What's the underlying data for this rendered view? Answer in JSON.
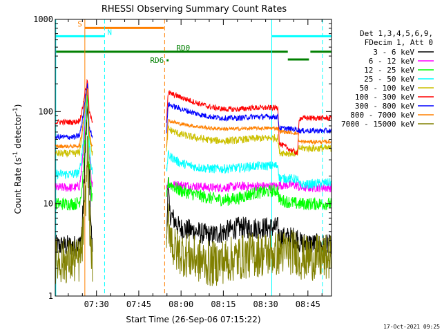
{
  "chart_data": {
    "type": "line",
    "title": "RHESSI Observing Summary Count Rates",
    "xlabel": "Start Time (26-Sep-06 07:15:22)",
    "ylabel_main": "Count Rate (s",
    "ylabel_sup1": "-1",
    "ylabel_mid": " detector",
    "ylabel_sup2": "-1",
    "ylabel_end": ")",
    "x_unit": "minutes after 07:15:22",
    "xlim": [
      0,
      98
    ],
    "ylim": [
      1,
      1000
    ],
    "yscale": "log",
    "x_ticks": [
      {
        "x": 14.63,
        "label": "07:30"
      },
      {
        "x": 29.63,
        "label": "07:45"
      },
      {
        "x": 44.63,
        "label": "08:00"
      },
      {
        "x": 59.63,
        "label": "08:15"
      },
      {
        "x": 74.63,
        "label": "08:30"
      },
      {
        "x": 89.63,
        "label": "08:45"
      }
    ],
    "y_ticks": [
      {
        "v": 1,
        "label": "1"
      },
      {
        "v": 10,
        "label": "10"
      },
      {
        "v": 100,
        "label": "100"
      },
      {
        "v": 1000,
        "label": "1000"
      }
    ],
    "legend": {
      "header": [
        "Det 1,3,4,5,6,9,",
        "FDecim 1, Att 0"
      ],
      "placement": "right"
    },
    "series": [
      {
        "name": "3 - 6 keV",
        "color": "#000000",
        "noise": 0.12,
        "points": [
          [
            0,
            3.5
          ],
          [
            7,
            3.5
          ],
          [
            8.6,
            3.6
          ],
          [
            9.5,
            5
          ],
          [
            10.5,
            30
          ],
          [
            11.5,
            120
          ],
          [
            12,
            25
          ],
          [
            13,
            3.5
          ],
          [
            39.5,
            3.5
          ],
          [
            40,
            20
          ],
          [
            40.5,
            8
          ],
          [
            44,
            5.5
          ],
          [
            50,
            5
          ],
          [
            55,
            4.5
          ],
          [
            60,
            5
          ],
          [
            65,
            5.5
          ],
          [
            70,
            5.5
          ],
          [
            79,
            5.5
          ],
          [
            79.5,
            4.3
          ],
          [
            86,
            4.3
          ],
          [
            86.5,
            3.8
          ],
          [
            98,
            3.5
          ]
        ]
      },
      {
        "name": "6 - 12 keV",
        "color": "#ff00ff",
        "noise": 0.05,
        "points": [
          [
            0,
            15
          ],
          [
            7,
            15
          ],
          [
            8.6,
            15.5
          ],
          [
            9.5,
            25
          ],
          [
            10.5,
            70
          ],
          [
            11.5,
            180
          ],
          [
            12,
            40
          ],
          [
            13,
            16
          ],
          [
            39.5,
            16
          ],
          [
            40,
            16
          ],
          [
            44,
            16
          ],
          [
            50,
            15.5
          ],
          [
            55,
            15
          ],
          [
            60,
            15
          ],
          [
            65,
            15.5
          ],
          [
            70,
            15.5
          ],
          [
            79,
            15.5
          ],
          [
            79.5,
            16
          ],
          [
            86,
            16
          ],
          [
            86.5,
            15
          ],
          [
            98,
            15
          ]
        ]
      },
      {
        "name": "12 - 25 keV",
        "color": "#00ff00",
        "noise": 0.07,
        "points": [
          [
            0,
            10
          ],
          [
            7,
            10
          ],
          [
            8.6,
            10.5
          ],
          [
            9.5,
            15
          ],
          [
            10.5,
            45
          ],
          [
            11.5,
            150
          ],
          [
            12,
            30
          ],
          [
            13,
            11
          ],
          [
            39.5,
            11
          ],
          [
            40,
            17
          ],
          [
            44,
            14
          ],
          [
            50,
            12.5
          ],
          [
            55,
            11.5
          ],
          [
            60,
            11
          ],
          [
            65,
            11.5
          ],
          [
            70,
            13
          ],
          [
            79,
            14
          ],
          [
            79.5,
            11
          ],
          [
            86,
            10
          ],
          [
            86.5,
            10
          ],
          [
            98,
            10
          ]
        ]
      },
      {
        "name": "25 - 50 keV",
        "color": "#00ffff",
        "noise": 0.05,
        "points": [
          [
            0,
            21
          ],
          [
            7,
            21
          ],
          [
            8.6,
            22
          ],
          [
            9.5,
            35
          ],
          [
            10.5,
            90
          ],
          [
            11.5,
            200
          ],
          [
            12,
            50
          ],
          [
            13,
            22
          ],
          [
            39.5,
            22
          ],
          [
            40,
            34
          ],
          [
            44,
            28
          ],
          [
            50,
            25
          ],
          [
            55,
            24
          ],
          [
            60,
            24
          ],
          [
            65,
            24.5
          ],
          [
            70,
            25.5
          ],
          [
            79,
            26
          ],
          [
            79.5,
            19
          ],
          [
            86,
            18.5
          ],
          [
            86.5,
            16
          ],
          [
            98,
            17
          ]
        ]
      },
      {
        "name": "50 - 100 keV",
        "color": "#ccc000",
        "noise": 0.04,
        "points": [
          [
            0,
            35
          ],
          [
            7,
            35
          ],
          [
            8.6,
            36
          ],
          [
            9.5,
            55
          ],
          [
            10.5,
            120
          ],
          [
            11.5,
            210
          ],
          [
            12,
            60
          ],
          [
            13,
            36
          ],
          [
            39.5,
            36
          ],
          [
            40,
            65
          ],
          [
            44,
            57
          ],
          [
            50,
            52
          ],
          [
            55,
            49
          ],
          [
            60,
            48
          ],
          [
            65,
            49
          ],
          [
            70,
            51
          ],
          [
            79,
            52
          ],
          [
            79.5,
            36
          ],
          [
            86,
            35
          ],
          [
            86.5,
            40
          ],
          [
            98,
            40
          ]
        ]
      },
      {
        "name": "100 - 300 keV",
        "color": "#ff0000",
        "noise": 0.03,
        "points": [
          [
            0,
            77
          ],
          [
            7,
            77
          ],
          [
            8.6,
            80
          ],
          [
            9.5,
            100
          ],
          [
            10.5,
            160
          ],
          [
            11.5,
            220
          ],
          [
            12,
            100
          ],
          [
            13,
            80
          ],
          [
            39.5,
            80
          ],
          [
            40,
            160
          ],
          [
            44,
            145
          ],
          [
            50,
            125
          ],
          [
            55,
            112
          ],
          [
            60,
            106
          ],
          [
            65,
            106
          ],
          [
            70,
            110
          ],
          [
            79,
            110
          ],
          [
            79.5,
            45
          ],
          [
            86,
            35
          ],
          [
            86.5,
            85
          ],
          [
            98,
            85
          ]
        ]
      },
      {
        "name": "300 - 800 keV",
        "color": "#0000ff",
        "noise": 0.03,
        "points": [
          [
            0,
            53
          ],
          [
            7,
            53
          ],
          [
            8.6,
            55
          ],
          [
            9.5,
            75
          ],
          [
            10.5,
            130
          ],
          [
            11.5,
            200
          ],
          [
            12,
            70
          ],
          [
            13,
            55
          ],
          [
            39.5,
            55
          ],
          [
            40,
            120
          ],
          [
            44,
            108
          ],
          [
            50,
            95
          ],
          [
            55,
            88
          ],
          [
            60,
            85
          ],
          [
            65,
            85
          ],
          [
            70,
            88
          ],
          [
            79,
            88
          ],
          [
            79.5,
            66
          ],
          [
            86,
            64
          ],
          [
            86.5,
            62
          ],
          [
            98,
            62
          ]
        ]
      },
      {
        "name": "800 - 7000 keV",
        "color": "#ff8000",
        "noise": 0.02,
        "points": [
          [
            0,
            42
          ],
          [
            7,
            42
          ],
          [
            8.6,
            43
          ],
          [
            9.5,
            60
          ],
          [
            10.5,
            110
          ],
          [
            11.5,
            180
          ],
          [
            12,
            60
          ],
          [
            13,
            43
          ],
          [
            39.5,
            43
          ],
          [
            40,
            80
          ],
          [
            44,
            74
          ],
          [
            50,
            69
          ],
          [
            55,
            66
          ],
          [
            60,
            65
          ],
          [
            65,
            65
          ],
          [
            70,
            66
          ],
          [
            79,
            66
          ],
          [
            79.5,
            61
          ],
          [
            86,
            58
          ],
          [
            86.5,
            47
          ],
          [
            98,
            47
          ]
        ]
      },
      {
        "name": "7000 - 15000 keV",
        "color": "#808000",
        "noise": 0.25,
        "points": [
          [
            0,
            2.4
          ],
          [
            7,
            2.4
          ],
          [
            8.6,
            2.4
          ],
          [
            9.5,
            3.5
          ],
          [
            10.5,
            8
          ],
          [
            11.5,
            40
          ],
          [
            12,
            8
          ],
          [
            13,
            2.4
          ],
          [
            39.5,
            2.4
          ],
          [
            40,
            7
          ],
          [
            42,
            3.2
          ],
          [
            50,
            2.5
          ],
          [
            55,
            2.2
          ],
          [
            60,
            2.4
          ],
          [
            65,
            2.6
          ],
          [
            70,
            2.8
          ],
          [
            79,
            2.9
          ],
          [
            79.5,
            3.0
          ],
          [
            86,
            3.0
          ],
          [
            86.5,
            2.6
          ],
          [
            98,
            2.6
          ]
        ]
      }
    ],
    "flag_bars": [
      {
        "label": "S",
        "color": "#ff8000",
        "x0": 10.5,
        "x1": 38.5,
        "level": 0.031
      },
      {
        "label": "N",
        "color": "#00ffff",
        "x0": 0,
        "x1": 17.5,
        "level": 0.061
      },
      {
        "label": "",
        "color": "#00ffff",
        "x0": 76.8,
        "x1": 98,
        "level": 0.061
      },
      {
        "label": "RD0",
        "color": "#008000",
        "x0": 0,
        "x1": 82.5,
        "level": 0.117
      },
      {
        "label": "",
        "color": "#008000",
        "x0": 90.5,
        "x1": 98,
        "level": 0.117
      },
      {
        "label": "",
        "color": "#008000",
        "x0": 82.5,
        "x1": 90.0,
        "level": 0.145
      },
      {
        "label": "RD6",
        "color": "#008000",
        "x0": 39.5,
        "x1": 40.2,
        "level": 0.148
      }
    ],
    "vlines": [
      {
        "x": 0.2,
        "color": "#00ffff",
        "dash": "none"
      },
      {
        "x": 10.5,
        "color": "#ff8000",
        "dash": "none"
      },
      {
        "x": 17.5,
        "color": "#00ffff",
        "dash": "dash"
      },
      {
        "x": 38.8,
        "color": "#ff8000",
        "dash": "dash"
      },
      {
        "x": 76.8,
        "color": "#00ffff",
        "dash": "none"
      },
      {
        "x": 94.8,
        "color": "#00ffff",
        "dash": "dash"
      }
    ],
    "footer_stamp": "17-Oct-2021 09:25"
  }
}
